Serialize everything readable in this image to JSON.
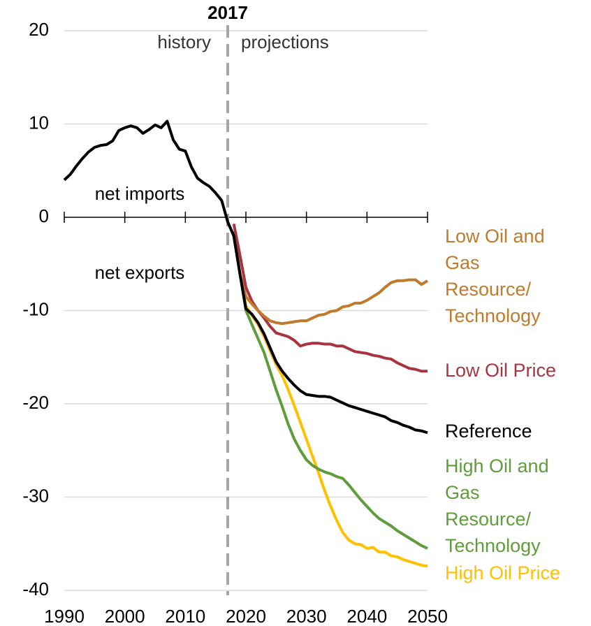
{
  "chart_data": {
    "type": "line",
    "x": [
      1990,
      1991,
      1992,
      1993,
      1994,
      1995,
      1996,
      1997,
      1998,
      1999,
      2000,
      2001,
      2002,
      2003,
      2004,
      2005,
      2006,
      2007,
      2008,
      2009,
      2010,
      2011,
      2012,
      2013,
      2014,
      2015,
      2016,
      2017,
      2018,
      2019,
      2020,
      2021,
      2022,
      2023,
      2024,
      2025,
      2026,
      2027,
      2028,
      2029,
      2030,
      2031,
      2032,
      2033,
      2034,
      2035,
      2036,
      2037,
      2038,
      2039,
      2040,
      2041,
      2042,
      2043,
      2044,
      2045,
      2046,
      2047,
      2048,
      2049,
      2050
    ],
    "xlim": [
      1990,
      2050
    ],
    "xticks": [
      1990,
      2000,
      2010,
      2020,
      2030,
      2040,
      2050
    ],
    "ylim": [
      -40,
      20
    ],
    "yticks": [
      20,
      10,
      0,
      -10,
      -20,
      -30,
      -40
    ],
    "grid": true,
    "vline": {
      "x": 2017,
      "label": "2017"
    },
    "annotations": [
      "history",
      "projections",
      "net imports",
      "net exports"
    ],
    "series": [
      {
        "name": "High Oil Price",
        "color": "#ffc000",
        "values": [
          null,
          null,
          null,
          null,
          null,
          null,
          null,
          null,
          null,
          null,
          null,
          null,
          null,
          null,
          null,
          null,
          null,
          null,
          null,
          null,
          null,
          null,
          null,
          null,
          null,
          null,
          null,
          null,
          -1.5,
          -6,
          -9.5,
          -10.5,
          -11.5,
          -12.8,
          -14.3,
          -15.8,
          -17.0,
          -18.5,
          -20.2,
          -22.0,
          -23.8,
          -25.6,
          -27.4,
          -29.3,
          -31.0,
          -32.5,
          -33.8,
          -34.6,
          -35.0,
          -35.1,
          -35.5,
          -35.4,
          -35.9,
          -35.9,
          -36.3,
          -36.4,
          -36.7,
          -36.9,
          -37.1,
          -37.3,
          -37.4
        ]
      },
      {
        "name": "High Oil and\nGas\nResource/\nTechnology",
        "color": "#5f9c3b",
        "values": [
          null,
          null,
          null,
          null,
          null,
          null,
          null,
          null,
          null,
          null,
          null,
          null,
          null,
          null,
          null,
          null,
          null,
          null,
          null,
          null,
          null,
          null,
          null,
          null,
          null,
          null,
          null,
          null,
          -1.5,
          -6,
          -10,
          -11.5,
          -13,
          -14.5,
          -16.5,
          -18.5,
          -20.3,
          -22.2,
          -23.8,
          -25.0,
          -26.0,
          -26.6,
          -27.0,
          -27.3,
          -27.5,
          -27.8,
          -28.0,
          -28.7,
          -29.5,
          -30.3,
          -31.0,
          -31.7,
          -32.3,
          -32.7,
          -33.1,
          -33.6,
          -34.0,
          -34.4,
          -34.8,
          -35.2,
          -35.5
        ]
      },
      {
        "name": "Low Oil Price",
        "color": "#a8343f",
        "values": [
          null,
          null,
          null,
          null,
          null,
          null,
          null,
          null,
          null,
          null,
          null,
          null,
          null,
          null,
          null,
          null,
          null,
          null,
          null,
          null,
          null,
          null,
          null,
          null,
          null,
          null,
          null,
          null,
          -0.7,
          -4,
          -7.5,
          -9,
          -10,
          -10.8,
          -11.7,
          -12.4,
          -12.6,
          -12.8,
          -13.2,
          -13.8,
          -13.6,
          -13.5,
          -13.5,
          -13.6,
          -13.6,
          -13.8,
          -13.8,
          -14.1,
          -14.4,
          -14.5,
          -14.6,
          -14.8,
          -14.9,
          -15.1,
          -15.2,
          -15.6,
          -15.9,
          -16.2,
          -16.3,
          -16.5,
          -16.5
        ]
      },
      {
        "name": "Low Oil and\nGas\nResource/\nTechnology",
        "color": "#c07a2c",
        "values": [
          null,
          null,
          null,
          null,
          null,
          null,
          null,
          null,
          null,
          null,
          null,
          null,
          null,
          null,
          null,
          null,
          null,
          null,
          null,
          null,
          null,
          null,
          null,
          null,
          null,
          null,
          null,
          null,
          -2,
          -6,
          -8.5,
          -9.3,
          -10,
          -10.6,
          -11.1,
          -11.3,
          -11.4,
          -11.3,
          -11.2,
          -11.1,
          -11.1,
          -10.8,
          -10.5,
          -10.4,
          -10.1,
          -10.0,
          -9.6,
          -9.5,
          -9.2,
          -9.2,
          -8.9,
          -8.5,
          -8.1,
          -7.5,
          -7.0,
          -6.8,
          -6.8,
          -6.7,
          -6.7,
          -7.2,
          -6.8
        ]
      },
      {
        "name": "Reference",
        "color": "#000000",
        "values": [
          4.0,
          4.6,
          5.5,
          6.3,
          7.0,
          7.5,
          7.7,
          7.8,
          8.2,
          9.3,
          9.6,
          9.8,
          9.6,
          9.0,
          9.4,
          9.9,
          9.6,
          10.3,
          8.3,
          7.3,
          7.1,
          5.4,
          4.2,
          3.7,
          3.3,
          2.6,
          1.8,
          -0.5,
          -2.0,
          -6,
          -9.8,
          -10.4,
          -11.3,
          -12.5,
          -14,
          -15.5,
          -16.5,
          -17.3,
          -18.0,
          -18.6,
          -19.0,
          -19.1,
          -19.2,
          -19.2,
          -19.3,
          -19.6,
          -19.9,
          -20.2,
          -20.4,
          -20.6,
          -20.8,
          -21.0,
          -21.2,
          -21.4,
          -21.8,
          -22.0,
          -22.3,
          -22.5,
          -22.8,
          -22.9,
          -23.1
        ]
      }
    ]
  }
}
